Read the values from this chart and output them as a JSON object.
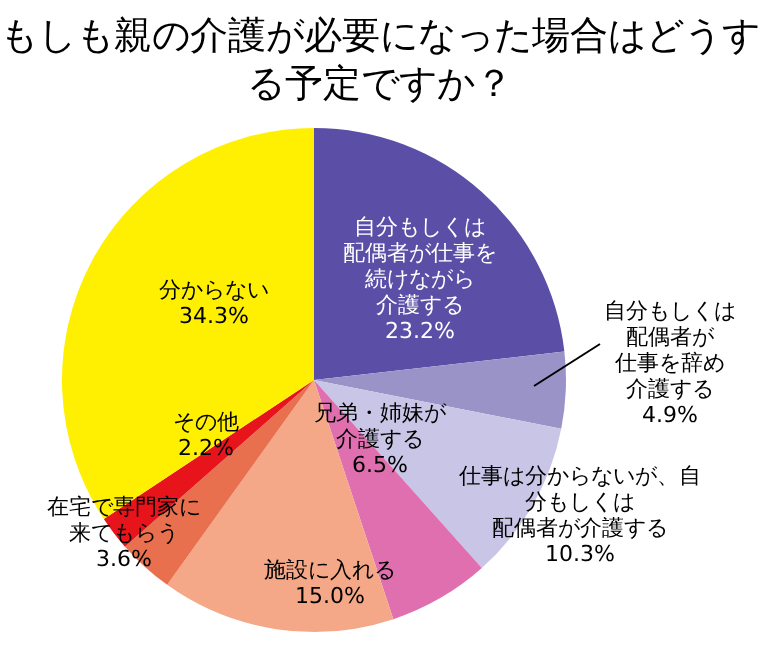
{
  "chart_data": {
    "type": "pie",
    "title": "もしも親の介護が必要になった場合はどうする予定ですか？",
    "categories": [
      "自分もしくは配偶者が仕事を続けながら介護する",
      "自分もしくは配偶者が仕事を辞め介護する",
      "仕事は分からないが、自分もしくは配偶者が介護する",
      "兄弟・姉妹が介護する",
      "施設に入れる",
      "在宅で専門家に来てもらう",
      "その他",
      "分からない"
    ],
    "values": [
      23.2,
      4.9,
      10.3,
      6.5,
      15.0,
      3.6,
      2.2,
      34.3
    ],
    "value_labels": [
      "23.2%",
      "4.9%",
      "10.3%",
      "6.5%",
      "15.0%",
      "3.6%",
      "2.2%",
      "34.3%"
    ],
    "colors": [
      "#5b4ea6",
      "#9a93c8",
      "#c9c5e6",
      "#e06fb0",
      "#f4a888",
      "#e8704f",
      "#e8141c",
      "#ffef00"
    ],
    "legend": false
  }
}
